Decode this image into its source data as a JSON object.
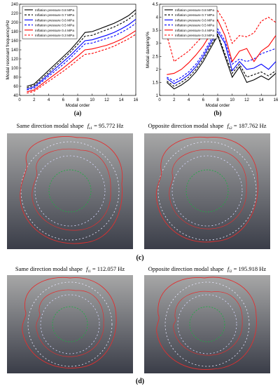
{
  "chart_data": [
    {
      "type": "line",
      "panel": "(a)",
      "xlabel": "Modal order",
      "ylabel": "Modal resonant frequency/Hz",
      "xlim": [
        0,
        16
      ],
      "ylim": [
        40,
        240
      ],
      "xticks": [
        0,
        2,
        4,
        6,
        8,
        10,
        12,
        14,
        16
      ],
      "yticks": [
        40,
        60,
        80,
        100,
        120,
        140,
        160,
        180,
        200,
        220,
        240
      ],
      "legend_position": "top-left",
      "x": [
        1,
        2,
        3,
        4,
        5,
        6,
        7,
        8,
        9,
        10,
        11,
        12,
        13,
        14,
        15,
        16
      ],
      "series": [
        {
          "name": "Inflation pressure  0.8 MPa",
          "color": "#000000",
          "dash": "solid",
          "values": [
            60,
            65,
            80,
            95,
            110,
            125,
            140,
            158,
            178,
            180,
            186,
            192,
            198,
            206,
            215,
            228
          ]
        },
        {
          "name": "Inflation pressure  0.7 MPa",
          "color": "#000000",
          "dash": "dashed",
          "values": [
            57,
            62,
            76,
            90,
            105,
            120,
            135,
            152,
            170,
            172,
            178,
            184,
            190,
            198,
            207,
            220
          ]
        },
        {
          "name": "Inflation pressure  0.6 MPa",
          "color": "#0000ff",
          "dash": "solid",
          "values": [
            54,
            59,
            72,
            86,
            100,
            114,
            128,
            144,
            160,
            162,
            167,
            172,
            178,
            186,
            195,
            207
          ]
        },
        {
          "name": "Inflation pressure  0.5 MPa",
          "color": "#0000ff",
          "dash": "dashed",
          "values": [
            52,
            56,
            69,
            82,
            95,
            108,
            122,
            138,
            153,
            155,
            160,
            165,
            170,
            178,
            187,
            198
          ]
        },
        {
          "name": "Inflation pressure  0.4 MPa",
          "color": "#ff0000",
          "dash": "solid",
          "values": [
            48,
            52,
            64,
            76,
            88,
            100,
            113,
            126,
            140,
            142,
            146,
            150,
            156,
            163,
            172,
            182
          ]
        },
        {
          "name": "Inflation pressure  0.3 MPa",
          "color": "#ff0000",
          "dash": "dashed",
          "values": [
            45,
            49,
            60,
            71,
            82,
            93,
            105,
            118,
            130,
            132,
            137,
            142,
            148,
            156,
            164,
            174
          ]
        }
      ]
    },
    {
      "type": "line",
      "panel": "(b)",
      "xlabel": "Modal order",
      "ylabel": "Modal damping/%",
      "xlim": [
        0,
        16
      ],
      "ylim": [
        1,
        4.5
      ],
      "xticks": [
        0,
        2,
        4,
        6,
        8,
        10,
        12,
        14,
        16
      ],
      "yticks": [
        1,
        1.5,
        2,
        2.5,
        3,
        3.5,
        4,
        4.5
      ],
      "legend_position": "top-left",
      "x": [
        1,
        2,
        3,
        4,
        5,
        6,
        7,
        8,
        9,
        10,
        11,
        12,
        13,
        14,
        15,
        16
      ],
      "series": [
        {
          "name": "Inflation pressure  0.8 MPa",
          "color": "#000000",
          "dash": "solid",
          "values": [
            1.5,
            1.25,
            1.4,
            1.6,
            1.9,
            2.3,
            2.8,
            3.3,
            2.5,
            1.7,
            2.1,
            1.5,
            1.6,
            1.75,
            1.6,
            1.85
          ]
        },
        {
          "name": "Inflation pressure  0.7 MPa",
          "color": "#000000",
          "dash": "dashed",
          "values": [
            1.55,
            1.35,
            1.5,
            1.7,
            2.0,
            2.4,
            2.9,
            3.35,
            2.6,
            1.85,
            2.2,
            1.7,
            1.8,
            1.9,
            1.75,
            1.95
          ]
        },
        {
          "name": "Inflation pressure  0.6 MPa",
          "color": "#0000ff",
          "dash": "solid",
          "values": [
            1.65,
            1.45,
            1.6,
            1.8,
            2.1,
            2.5,
            3.0,
            3.45,
            3.0,
            1.95,
            2.3,
            2.0,
            2.05,
            2.2,
            2.0,
            2.3
          ]
        },
        {
          "name": "Inflation pressure  0.5 MPa",
          "color": "#0000ff",
          "dash": "dashed",
          "values": [
            1.7,
            1.55,
            1.7,
            1.9,
            2.2,
            2.6,
            3.1,
            3.55,
            3.1,
            2.2,
            2.4,
            2.3,
            2.4,
            2.6,
            2.7,
            2.8
          ]
        },
        {
          "name": "Inflation pressure  0.4 MPa",
          "color": "#ff0000",
          "dash": "solid",
          "values": [
            1.8,
            1.85,
            2.0,
            2.25,
            2.55,
            2.9,
            3.35,
            3.9,
            3.3,
            2.3,
            2.7,
            2.8,
            2.3,
            2.7,
            2.9,
            3.3
          ]
        },
        {
          "name": "Inflation pressure  0.3 MPa",
          "color": "#ff0000",
          "dash": "dashed",
          "values": [
            3.3,
            2.3,
            2.5,
            2.7,
            3.0,
            3.3,
            3.7,
            4.25,
            3.8,
            3.0,
            3.3,
            3.25,
            3.4,
            3.85,
            4.0,
            3.8
          ]
        }
      ]
    }
  ],
  "labels": {
    "a": "(a)",
    "b": "(b)",
    "c": "(c)",
    "d": "(d)"
  },
  "modal_shapes": [
    {
      "title": "Same direction modal shape",
      "sym": "f",
      "sub": "s1",
      "value": " = 95.772 Hz"
    },
    {
      "title": "Opposite direction modal shape",
      "sym": "f",
      "sub": "s2",
      "value": " = 187.762 Hz"
    },
    {
      "title": "Same direction modal shape",
      "sym": "f",
      "sub": "l1",
      "value": " = 112.057 Hz"
    },
    {
      "title": "Opposite direction modal shape",
      "sym": "f",
      "sub": "l2",
      "value": " = 195.918 Hz"
    }
  ]
}
